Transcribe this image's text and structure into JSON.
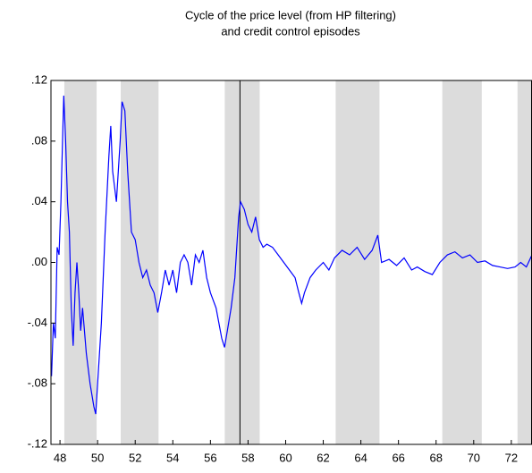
{
  "chart_data": {
    "type": "line",
    "title_lines": [
      "Cycle of the price level (from HP filtering)",
      "and credit control episodes"
    ],
    "x": [
      47.55,
      47.65,
      47.75,
      47.85,
      47.95,
      48.05,
      48.2,
      48.3,
      48.4,
      48.5,
      48.6,
      48.7,
      48.8,
      48.9,
      49.0,
      49.1,
      49.2,
      49.4,
      49.6,
      49.8,
      49.9,
      50.0,
      50.2,
      50.4,
      50.6,
      50.7,
      50.8,
      51.0,
      51.2,
      51.3,
      51.45,
      51.6,
      51.8,
      52.0,
      52.2,
      52.4,
      52.6,
      52.8,
      53.0,
      53.2,
      53.4,
      53.6,
      53.8,
      54.0,
      54.2,
      54.4,
      54.6,
      54.8,
      55.0,
      55.2,
      55.4,
      55.6,
      55.8,
      56.0,
      56.3,
      56.6,
      56.75,
      56.9,
      57.1,
      57.3,
      57.5,
      57.6,
      57.8,
      58.0,
      58.2,
      58.4,
      58.6,
      58.8,
      59.0,
      59.3,
      59.6,
      59.9,
      60.2,
      60.5,
      60.7,
      60.85,
      61.0,
      61.3,
      61.6,
      62.0,
      62.3,
      62.6,
      63.0,
      63.4,
      63.8,
      64.2,
      64.6,
      64.9,
      65.1,
      65.5,
      65.9,
      66.3,
      66.7,
      67.0,
      67.4,
      67.8,
      68.2,
      68.6,
      69.0,
      69.4,
      69.8,
      70.2,
      70.6,
      71.0,
      71.4,
      71.8,
      72.2,
      72.5,
      72.8,
      73.1
    ],
    "series": [
      {
        "name": "cycle",
        "color": "#0000ff",
        "values": [
          -0.075,
          -0.04,
          -0.05,
          0.01,
          0.005,
          0.04,
          0.11,
          0.08,
          0.04,
          0.02,
          -0.03,
          -0.055,
          -0.02,
          0.0,
          -0.02,
          -0.045,
          -0.03,
          -0.06,
          -0.08,
          -0.095,
          -0.1,
          -0.08,
          -0.04,
          0.02,
          0.07,
          0.09,
          0.06,
          0.04,
          0.08,
          0.106,
          0.1,
          0.06,
          0.02,
          0.015,
          0.0,
          -0.01,
          -0.005,
          -0.015,
          -0.02,
          -0.033,
          -0.02,
          -0.005,
          -0.015,
          -0.005,
          -0.02,
          0.0,
          0.005,
          0.0,
          -0.015,
          0.005,
          0.0,
          0.008,
          -0.01,
          -0.02,
          -0.03,
          -0.05,
          -0.056,
          -0.045,
          -0.03,
          -0.01,
          0.03,
          0.04,
          0.035,
          0.025,
          0.02,
          0.03,
          0.015,
          0.01,
          0.012,
          0.01,
          0.005,
          0.0,
          -0.005,
          -0.01,
          -0.02,
          -0.027,
          -0.02,
          -0.01,
          -0.005,
          0.0,
          -0.005,
          0.003,
          0.008,
          0.005,
          0.01,
          0.002,
          0.008,
          0.018,
          0.0,
          0.002,
          -0.002,
          0.003,
          -0.005,
          -0.003,
          -0.006,
          -0.008,
          0.0,
          0.005,
          0.007,
          0.003,
          0.005,
          0.0,
          0.001,
          -0.002,
          -0.003,
          -0.004,
          -0.003,
          0.0,
          -0.003,
          0.005
        ]
      }
    ],
    "shaded_periods": [
      [
        48.23,
        49.95
      ],
      [
        51.23,
        53.24
      ],
      [
        56.76,
        58.62
      ],
      [
        62.66,
        64.99
      ],
      [
        68.33,
        70.43
      ],
      [
        72.33,
        73.1
      ]
    ],
    "shade_color": "#dcdcdc",
    "vline": 57.57,
    "xlim": [
      47.52,
      73.1
    ],
    "xticks": [
      48,
      50,
      52,
      54,
      56,
      58,
      60,
      62,
      64,
      66,
      68,
      70,
      72
    ],
    "ylim": [
      -0.12,
      0.12
    ],
    "yticks": [
      {
        "value": 0.12,
        "label": ".12"
      },
      {
        "value": 0.08,
        "label": ".08"
      },
      {
        "value": 0.04,
        "label": ".04"
      },
      {
        "value": 0,
        "label": ".00"
      },
      {
        "value": -0.04,
        "label": "-.04"
      },
      {
        "value": -0.08,
        "label": "-.08"
      },
      {
        "value": -0.12,
        "label": "-.12"
      }
    ]
  }
}
